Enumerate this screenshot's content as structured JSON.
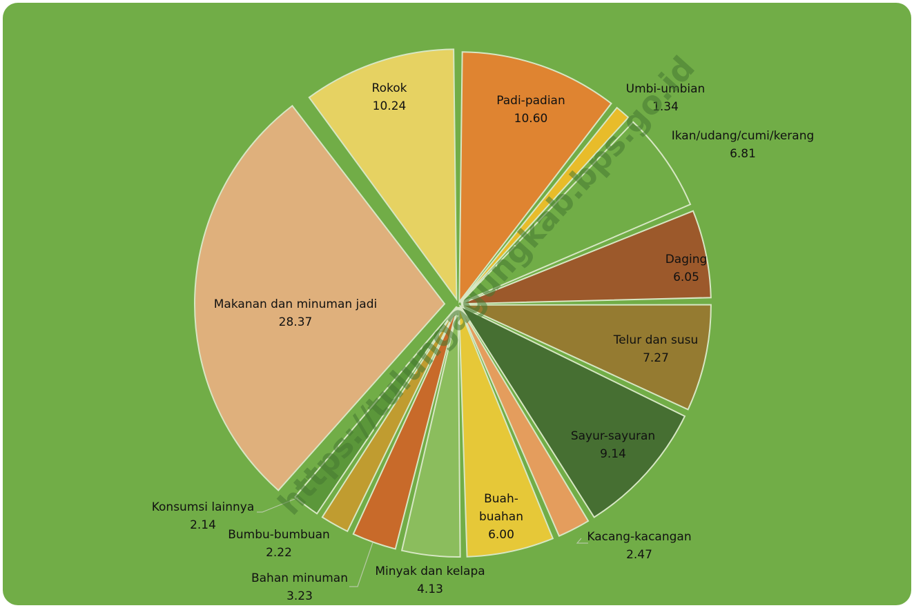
{
  "chart_data": {
    "type": "pie",
    "slices": [
      {
        "label": "Padi-padian",
        "value": 10.6,
        "value_text": "10.60",
        "color": "#df8431"
      },
      {
        "label": "Umbi-umbian",
        "value": 1.34,
        "value_text": "1.34",
        "color": "#e8bc2a"
      },
      {
        "label": "Ikan/udang/cumi/kerang",
        "value": 6.81,
        "value_text": "6.81",
        "color": "#71ad47"
      },
      {
        "label": "Daging",
        "value": 6.05,
        "value_text": "6.05",
        "color": "#9c592b"
      },
      {
        "label": "Telur dan susu",
        "value": 7.27,
        "value_text": "7.27",
        "color": "#957b31"
      },
      {
        "label": "Sayur-sayuran",
        "value": 9.14,
        "value_text": "9.14",
        "color": "#466f32"
      },
      {
        "label": "Kacang-kacangan",
        "value": 2.47,
        "value_text": "2.47",
        "color": "#e49d5d"
      },
      {
        "label": "Buah-buahan",
        "value": 6.0,
        "value_text": "6.00",
        "color": "#e6c838"
      },
      {
        "label": "Minyak dan kelapa",
        "value": 4.13,
        "value_text": "4.13",
        "color": "#8bbd5d"
      },
      {
        "label": "Bahan minuman",
        "value": 3.23,
        "value_text": "3.23",
        "color": "#c86a2a"
      },
      {
        "label": "Bumbu-bumbuan",
        "value": 2.22,
        "value_text": "2.22",
        "color": "#c09c30"
      },
      {
        "label": "Konsumsi lainnya",
        "value": 2.14,
        "value_text": "2.14",
        "color": "#5b973a"
      },
      {
        "label": "Makanan dan minuman jadi",
        "value": 28.37,
        "value_text": "28.37",
        "color": "#dfb07c"
      },
      {
        "label": "Rokok",
        "value": 10.24,
        "value_text": "10.24",
        "color": "#e6d262"
      }
    ]
  },
  "watermark": "https://tulungagungkab.bps.go.id",
  "colors": {
    "background": "#71ad47",
    "slice_border": "#d7e7c4"
  }
}
